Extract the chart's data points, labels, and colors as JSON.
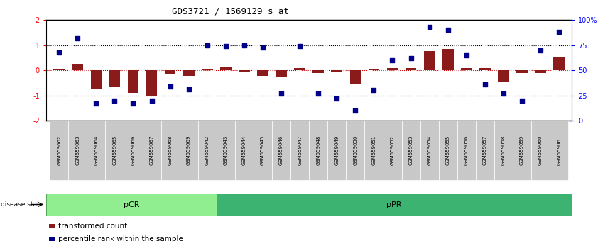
{
  "title": "GDS3721 / 1569129_s_at",
  "samples": [
    "GSM559062",
    "GSM559063",
    "GSM559064",
    "GSM559065",
    "GSM559066",
    "GSM559067",
    "GSM559068",
    "GSM559069",
    "GSM559042",
    "GSM559043",
    "GSM559044",
    "GSM559045",
    "GSM559046",
    "GSM559047",
    "GSM559048",
    "GSM559049",
    "GSM559050",
    "GSM559051",
    "GSM559052",
    "GSM559053",
    "GSM559054",
    "GSM559055",
    "GSM559056",
    "GSM559057",
    "GSM559058",
    "GSM559059",
    "GSM559060",
    "GSM559061"
  ],
  "transformed_count": [
    0.07,
    0.27,
    -0.72,
    -0.68,
    -0.9,
    -1.0,
    -0.18,
    -0.22,
    0.07,
    0.15,
    -0.07,
    -0.22,
    -0.27,
    0.1,
    -0.12,
    -0.07,
    -0.55,
    0.07,
    0.1,
    0.1,
    0.77,
    0.85,
    0.1,
    0.1,
    -0.45,
    -0.1,
    -0.1,
    0.55
  ],
  "percentile_rank": [
    68,
    82,
    17,
    20,
    17,
    20,
    34,
    31,
    75,
    74,
    75,
    73,
    27,
    74,
    27,
    22,
    10,
    30,
    60,
    62,
    93,
    90,
    65,
    36,
    27,
    20,
    70,
    88
  ],
  "pCR_count": 9,
  "pPR_count": 19,
  "ylim": [
    -2,
    2
  ],
  "bar_color": "#8B1A1A",
  "dot_color": "#00008B",
  "pCR_color": "#90EE90",
  "pPR_color": "#3CB371",
  "label_bg_color": "#C8C8C8",
  "dotted_line_color": "#000000",
  "zero_line_color": "#CC0000"
}
